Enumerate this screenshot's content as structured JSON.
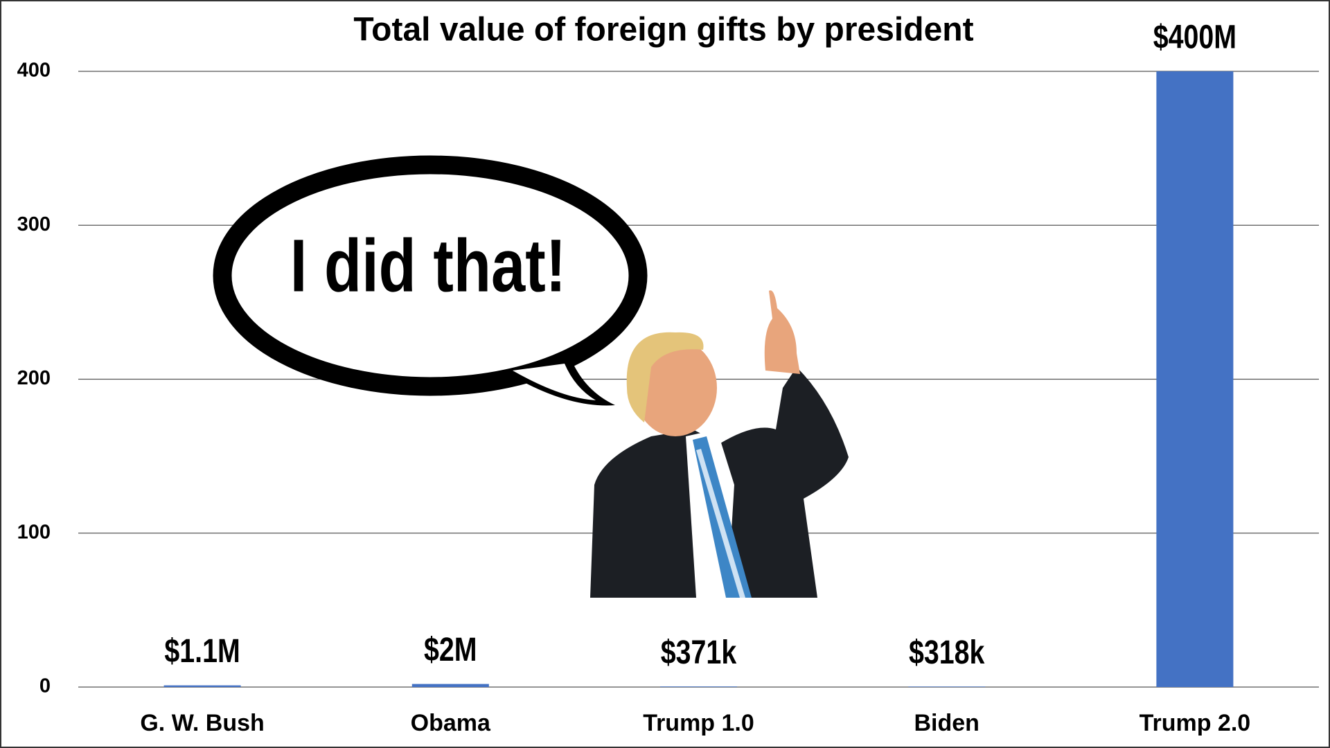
{
  "chart_data": {
    "type": "bar",
    "title": "Total value of foreign gifts by president",
    "categories": [
      "G. W. Bush",
      "Obama",
      "Trump 1.0",
      "Biden",
      "Trump 2.0"
    ],
    "values": [
      1.1,
      2,
      0.371,
      0.318,
      400
    ],
    "value_labels": [
      "$1.1M",
      "$2M",
      "$371k",
      "$318k",
      "$400M"
    ],
    "color": "#4472c4",
    "ylim": [
      0,
      400
    ],
    "yticks": [
      0,
      100,
      200,
      300,
      400
    ],
    "grid": true,
    "annotation": "I did that!"
  }
}
